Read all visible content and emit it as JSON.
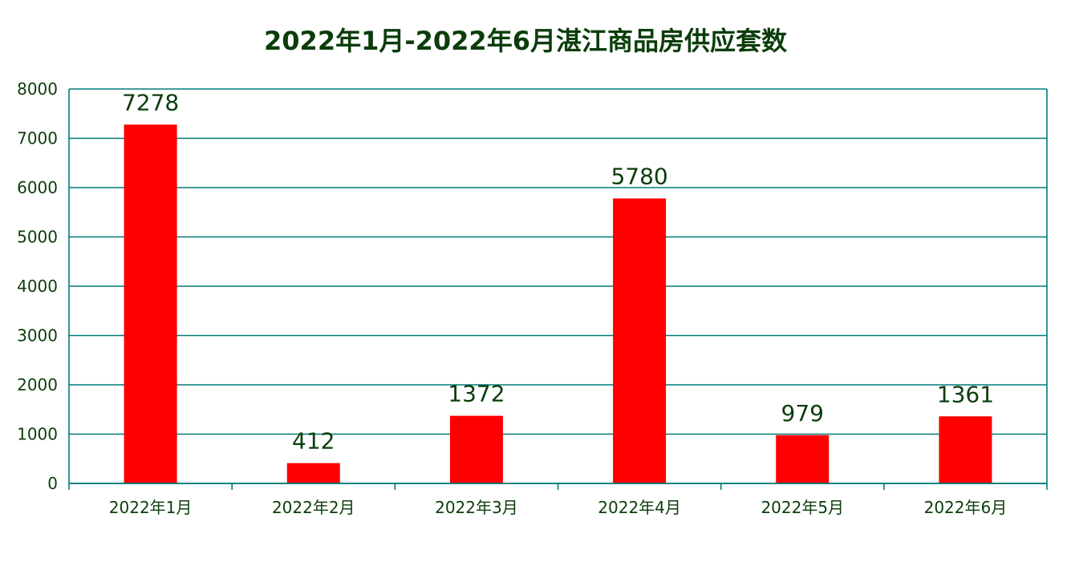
{
  "chart_data": {
    "type": "bar",
    "title": "2022年1月-2022年6月湛江商品房供应套数",
    "categories": [
      "2022年1月",
      "2022年2月",
      "2022年3月",
      "2022年4月",
      "2022年5月",
      "2022年6月"
    ],
    "values": [
      7278,
      412,
      1372,
      5780,
      979,
      1361
    ],
    "ylim": [
      0,
      8000
    ],
    "yticks": [
      0,
      1000,
      2000,
      3000,
      4000,
      5000,
      6000,
      7000,
      8000
    ],
    "xlabel": "",
    "ylabel": "",
    "grid": true,
    "legend": "none",
    "colors": {
      "bar": "#ff0000",
      "grid": "#007b7b",
      "text": "#0b3d0b"
    }
  }
}
